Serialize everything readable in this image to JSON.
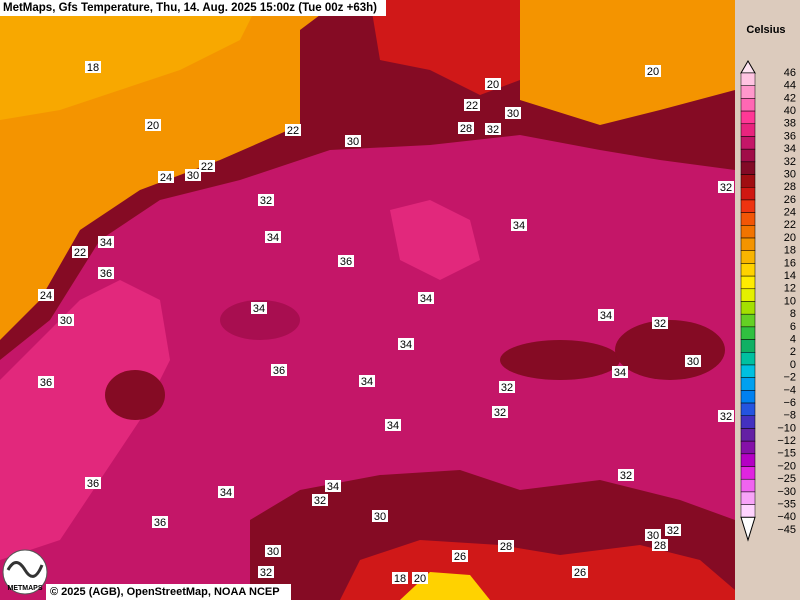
{
  "header": {
    "title": "MetMaps, Gfs Temperature, Thu, 14. Aug. 2025 15:00z (Tue 00z +63h)"
  },
  "legend": {
    "unit": "Celsius",
    "labels": [
      "46",
      "44",
      "42",
      "40",
      "38",
      "36",
      "34",
      "32",
      "30",
      "28",
      "26",
      "24",
      "22",
      "20",
      "18",
      "16",
      "14",
      "12",
      "10",
      "8",
      "6",
      "4",
      "2",
      "0",
      "−2",
      "−4",
      "−6",
      "−8",
      "−10",
      "−12",
      "−15",
      "−20",
      "−25",
      "−30",
      "−35",
      "−40",
      "−45"
    ],
    "colors": [
      "#ffe4f2",
      "#ffc4e2",
      "#ff98cc",
      "#ff68b4",
      "#ff3896",
      "#e8247e",
      "#c41668",
      "#a00c48",
      "#820a26",
      "#a00e12",
      "#d01812",
      "#ee3410",
      "#f25606",
      "#f27400",
      "#f49400",
      "#f8b400",
      "#ffd200",
      "#ffec00",
      "#e4f000",
      "#a4e000",
      "#64d024",
      "#30c040",
      "#10b064",
      "#00c0a0",
      "#00c0e0",
      "#00a0f0",
      "#0080f0",
      "#2454e0",
      "#4430c0",
      "#6420a4",
      "#8410a8",
      "#b400c4",
      "#e024e0",
      "#f064f0",
      "#f8a4f8",
      "#ffd4ff",
      "#ffffff"
    ]
  },
  "map": {
    "contour_labels": [
      18,
      20,
      20,
      20,
      22,
      22,
      22,
      24,
      30,
      32,
      34,
      36,
      34,
      34,
      34,
      34,
      34,
      36,
      34,
      32,
      30,
      34,
      32,
      32,
      34,
      36,
      36,
      34,
      36,
      32,
      34,
      30,
      30,
      32,
      26,
      28,
      26,
      32,
      30,
      32,
      28,
      30,
      28,
      32,
      30,
      32,
      32,
      20,
      18,
      24,
      30,
      22,
      34,
      36
    ]
  },
  "footer": {
    "copyright": "© 2025 (AGB), OpenStreetMap, NOAA NCEP",
    "logo": "METMAPS"
  }
}
